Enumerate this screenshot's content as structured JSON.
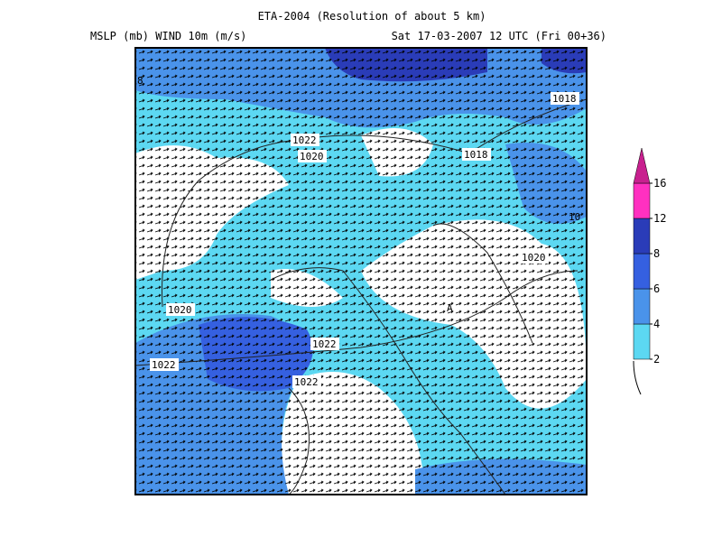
{
  "header": {
    "title": "ETA-2004 (Resolution of about 5 km)",
    "fields": "MSLP (mb)  WIND 10m (m/s)",
    "valid_time": "Sat 17-03-2007 12 UTC (Fri 00+36)"
  },
  "isobar_labels": [
    "8",
    "1018",
    "1022",
    "1020",
    "1018",
    "10",
    "1020",
    "1020",
    "1022",
    "1022",
    "1022",
    "A"
  ],
  "legend": {
    "ticks": [
      2,
      4,
      6,
      8,
      12,
      16
    ],
    "colors": [
      "#5cd8f2",
      "#4a93ea",
      "#3560e0",
      "#2a3cb8",
      "#ff30c0",
      "#c8208f"
    ]
  }
}
